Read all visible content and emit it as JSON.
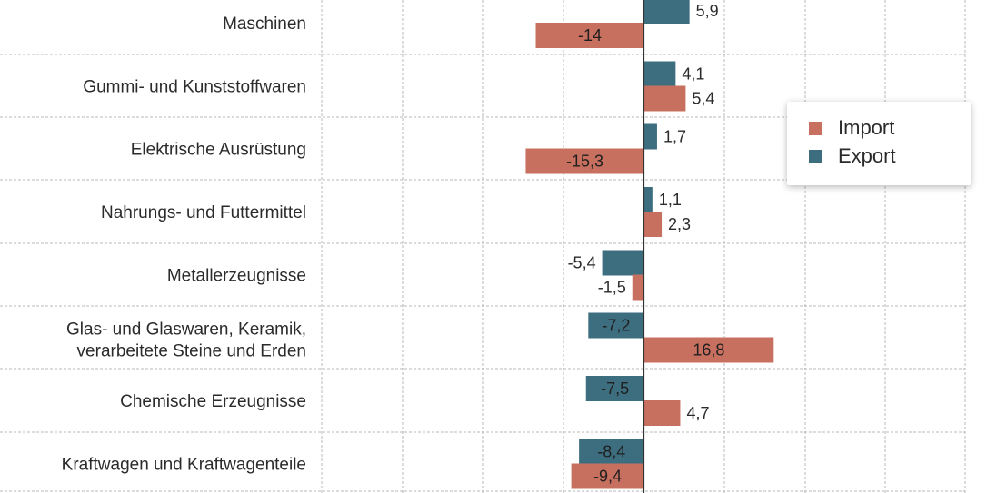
{
  "chart_data": {
    "type": "bar",
    "orientation": "horizontal",
    "categories": [
      "Maschinen",
      "Gummi- und Kunststoffwaren",
      "Elektrische Ausrüstung",
      "Nahrungs- und Futtermittel",
      "Metallerzeugnisse",
      "Glas- und Glaswaren, Keramik, verarbeitete Steine und Erden",
      "Chemische Erzeugnisse",
      "Kraftwagen und Kraftwagenteile"
    ],
    "category_lines": [
      [
        "Maschinen"
      ],
      [
        "Gummi- und Kunststoffwaren"
      ],
      [
        "Elektrische Ausrüstung"
      ],
      [
        "Nahrungs- und Futtermittel"
      ],
      [
        "Metallerzeugnisse"
      ],
      [
        "Glas- und Glaswaren, Keramik,",
        "verarbeitete Steine und Erden"
      ],
      [
        "Chemische Erzeugnisse"
      ],
      [
        "Kraftwagen und Kraftwagenteile"
      ]
    ],
    "series": [
      {
        "name": "Export",
        "color": "#3d6e7f",
        "values": [
          5.9,
          4.1,
          1.7,
          1.1,
          -5.4,
          -7.2,
          -7.5,
          -8.4
        ],
        "labels": [
          "5,9",
          "4,1",
          "1,7",
          "1,1",
          "-5,4",
          "-7,2",
          "-7,5",
          "-8,4"
        ]
      },
      {
        "name": "Import",
        "color": "#c8705f",
        "values": [
          -14,
          5.4,
          -15.3,
          2.3,
          -1.5,
          16.8,
          4.7,
          -9.4
        ],
        "labels": [
          "-14",
          "5,4",
          "-15,3",
          "2,3",
          "-1,5",
          "16,8",
          "4,7",
          "-9,4"
        ]
      }
    ],
    "grid": true,
    "legend_position": "right",
    "legend": [
      {
        "name": "Import",
        "color": "#c8705f"
      },
      {
        "name": "Export",
        "color": "#3d6e7f"
      }
    ]
  }
}
